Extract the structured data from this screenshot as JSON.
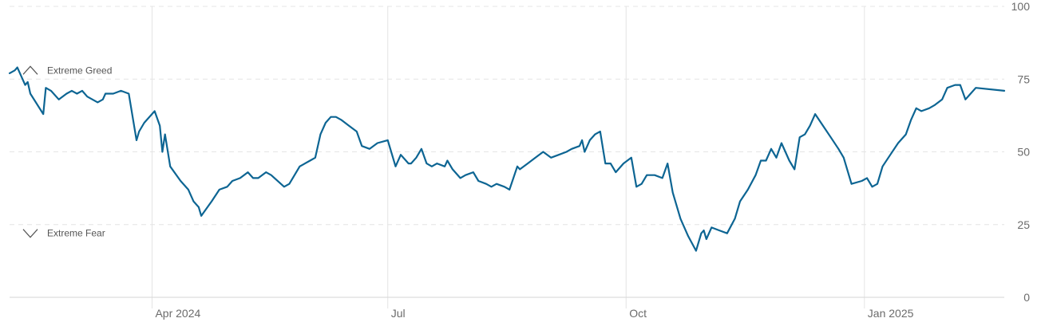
{
  "chart_data": {
    "type": "line",
    "title": "",
    "xlabel": "",
    "ylabel": "",
    "ylim": [
      0,
      100
    ],
    "y_ticks": [
      0,
      25,
      50,
      75,
      100
    ],
    "x_range": [
      "2024-02-06",
      "2025-02-24"
    ],
    "x_ticks": [
      {
        "date": "2024-04-01",
        "label": "Apr 2024"
      },
      {
        "date": "2024-07-01",
        "label": "Jul"
      },
      {
        "date": "2024-10-01",
        "label": "Oct"
      },
      {
        "date": "2025-01-01",
        "label": "Jan 2025"
      }
    ],
    "grid": {
      "horizontal": true,
      "vertical": true
    },
    "line_color": "#0d6593",
    "grid_color": "#e4e4e4",
    "zones": [
      {
        "label": "Extreme Greed",
        "y": 78,
        "direction": "up"
      },
      {
        "label": "Extreme Fear",
        "y": 22,
        "direction": "down"
      }
    ],
    "series": [
      {
        "points": [
          [
            "2024-02-06",
            77
          ],
          [
            "2024-02-08",
            78
          ],
          [
            "2024-02-09",
            79
          ],
          [
            "2024-02-12",
            73
          ],
          [
            "2024-02-13",
            74
          ],
          [
            "2024-02-14",
            70
          ],
          [
            "2024-02-19",
            63
          ],
          [
            "2024-02-20",
            72
          ],
          [
            "2024-02-22",
            71
          ],
          [
            "2024-02-25",
            68
          ],
          [
            "2024-02-28",
            70
          ],
          [
            "2024-03-01",
            71
          ],
          [
            "2024-03-03",
            70
          ],
          [
            "2024-03-05",
            71
          ],
          [
            "2024-03-07",
            69
          ],
          [
            "2024-03-11",
            67
          ],
          [
            "2024-03-13",
            68
          ],
          [
            "2024-03-14",
            70
          ],
          [
            "2024-03-17",
            70
          ],
          [
            "2024-03-20",
            71
          ],
          [
            "2024-03-23",
            70
          ],
          [
            "2024-03-26",
            54
          ],
          [
            "2024-03-27",
            57
          ],
          [
            "2024-03-29",
            60
          ],
          [
            "2024-04-02",
            64
          ],
          [
            "2024-04-04",
            59
          ],
          [
            "2024-04-05",
            50
          ],
          [
            "2024-04-06",
            56
          ],
          [
            "2024-04-08",
            45
          ],
          [
            "2024-04-12",
            40
          ],
          [
            "2024-04-15",
            37
          ],
          [
            "2024-04-17",
            33
          ],
          [
            "2024-04-19",
            31
          ],
          [
            "2024-04-20",
            28
          ],
          [
            "2024-04-24",
            33
          ],
          [
            "2024-04-27",
            37
          ],
          [
            "2024-04-30",
            38
          ],
          [
            "2024-05-02",
            40
          ],
          [
            "2024-05-05",
            41
          ],
          [
            "2024-05-08",
            43
          ],
          [
            "2024-05-10",
            41
          ],
          [
            "2024-05-12",
            41
          ],
          [
            "2024-05-15",
            43
          ],
          [
            "2024-05-17",
            42
          ],
          [
            "2024-05-22",
            38
          ],
          [
            "2024-05-24",
            39
          ],
          [
            "2024-05-28",
            45
          ],
          [
            "2024-06-01",
            47
          ],
          [
            "2024-06-03",
            48
          ],
          [
            "2024-06-05",
            56
          ],
          [
            "2024-06-07",
            60
          ],
          [
            "2024-06-09",
            62
          ],
          [
            "2024-06-11",
            62
          ],
          [
            "2024-06-13",
            61
          ],
          [
            "2024-06-16",
            59
          ],
          [
            "2024-06-19",
            57
          ],
          [
            "2024-06-21",
            52
          ],
          [
            "2024-06-24",
            51
          ],
          [
            "2024-06-27",
            53
          ],
          [
            "2024-07-01",
            54
          ],
          [
            "2024-07-04",
            45
          ],
          [
            "2024-07-06",
            49
          ],
          [
            "2024-07-09",
            46
          ],
          [
            "2024-07-10",
            46
          ],
          [
            "2024-07-12",
            48
          ],
          [
            "2024-07-14",
            51
          ],
          [
            "2024-07-16",
            46
          ],
          [
            "2024-07-18",
            45
          ],
          [
            "2024-07-20",
            46
          ],
          [
            "2024-07-23",
            45
          ],
          [
            "2024-07-24",
            47
          ],
          [
            "2024-07-26",
            44
          ],
          [
            "2024-07-29",
            41
          ],
          [
            "2024-07-31",
            42
          ],
          [
            "2024-08-03",
            43
          ],
          [
            "2024-08-05",
            40
          ],
          [
            "2024-08-08",
            39
          ],
          [
            "2024-08-10",
            38
          ],
          [
            "2024-08-12",
            39
          ],
          [
            "2024-08-15",
            38
          ],
          [
            "2024-08-17",
            37
          ],
          [
            "2024-08-20",
            45
          ],
          [
            "2024-08-21",
            44
          ],
          [
            "2024-08-24",
            46
          ],
          [
            "2024-08-27",
            48
          ],
          [
            "2024-08-30",
            50
          ],
          [
            "2024-09-02",
            48
          ],
          [
            "2024-09-05",
            49
          ],
          [
            "2024-09-08",
            50
          ],
          [
            "2024-09-10",
            51
          ],
          [
            "2024-09-13",
            52
          ],
          [
            "2024-09-14",
            54
          ],
          [
            "2024-09-15",
            50
          ],
          [
            "2024-09-16",
            52
          ],
          [
            "2024-09-17",
            54
          ],
          [
            "2024-09-19",
            56
          ],
          [
            "2024-09-21",
            57
          ],
          [
            "2024-09-23",
            46
          ],
          [
            "2024-09-25",
            46
          ],
          [
            "2024-09-27",
            43
          ],
          [
            "2024-09-30",
            46
          ],
          [
            "2024-10-03",
            48
          ],
          [
            "2024-10-05",
            38
          ],
          [
            "2024-10-07",
            39
          ],
          [
            "2024-10-09",
            42
          ],
          [
            "2024-10-12",
            42
          ],
          [
            "2024-10-15",
            41
          ],
          [
            "2024-10-17",
            46
          ],
          [
            "2024-10-19",
            36
          ],
          [
            "2024-10-22",
            27
          ],
          [
            "2024-10-25",
            21
          ],
          [
            "2024-10-28",
            16
          ],
          [
            "2024-10-30",
            22
          ],
          [
            "2024-10-31",
            23
          ],
          [
            "2024-11-01",
            20
          ],
          [
            "2024-11-03",
            24
          ],
          [
            "2024-11-06",
            23
          ],
          [
            "2024-11-09",
            22
          ],
          [
            "2024-11-12",
            27
          ],
          [
            "2024-11-14",
            33
          ],
          [
            "2024-11-17",
            37
          ],
          [
            "2024-11-20",
            42
          ],
          [
            "2024-11-22",
            47
          ],
          [
            "2024-11-24",
            47
          ],
          [
            "2024-11-26",
            51
          ],
          [
            "2024-11-28",
            48
          ],
          [
            "2024-11-30",
            53
          ],
          [
            "2024-12-03",
            47
          ],
          [
            "2024-12-05",
            44
          ],
          [
            "2024-12-07",
            55
          ],
          [
            "2024-12-09",
            56
          ],
          [
            "2024-12-11",
            59
          ],
          [
            "2024-12-13",
            63
          ],
          [
            "2024-12-16",
            59
          ],
          [
            "2024-12-19",
            55
          ],
          [
            "2024-12-22",
            51
          ],
          [
            "2024-12-24",
            48
          ],
          [
            "2024-12-27",
            39
          ],
          [
            "2024-12-31",
            40
          ],
          [
            "2025-01-02",
            41
          ],
          [
            "2025-01-04",
            38
          ],
          [
            "2025-01-06",
            39
          ],
          [
            "2025-01-08",
            45
          ],
          [
            "2025-01-11",
            49
          ],
          [
            "2025-01-14",
            53
          ],
          [
            "2025-01-17",
            56
          ],
          [
            "2025-01-19",
            61
          ],
          [
            "2025-01-21",
            65
          ],
          [
            "2025-01-23",
            64
          ],
          [
            "2025-01-26",
            65
          ],
          [
            "2025-01-28",
            66
          ],
          [
            "2025-01-31",
            68
          ],
          [
            "2025-02-02",
            72
          ],
          [
            "2025-02-05",
            73
          ],
          [
            "2025-02-07",
            73
          ],
          [
            "2025-02-09",
            68
          ],
          [
            "2025-02-11",
            70
          ],
          [
            "2025-02-13",
            72
          ],
          [
            "2025-02-24",
            71
          ]
        ]
      }
    ]
  }
}
